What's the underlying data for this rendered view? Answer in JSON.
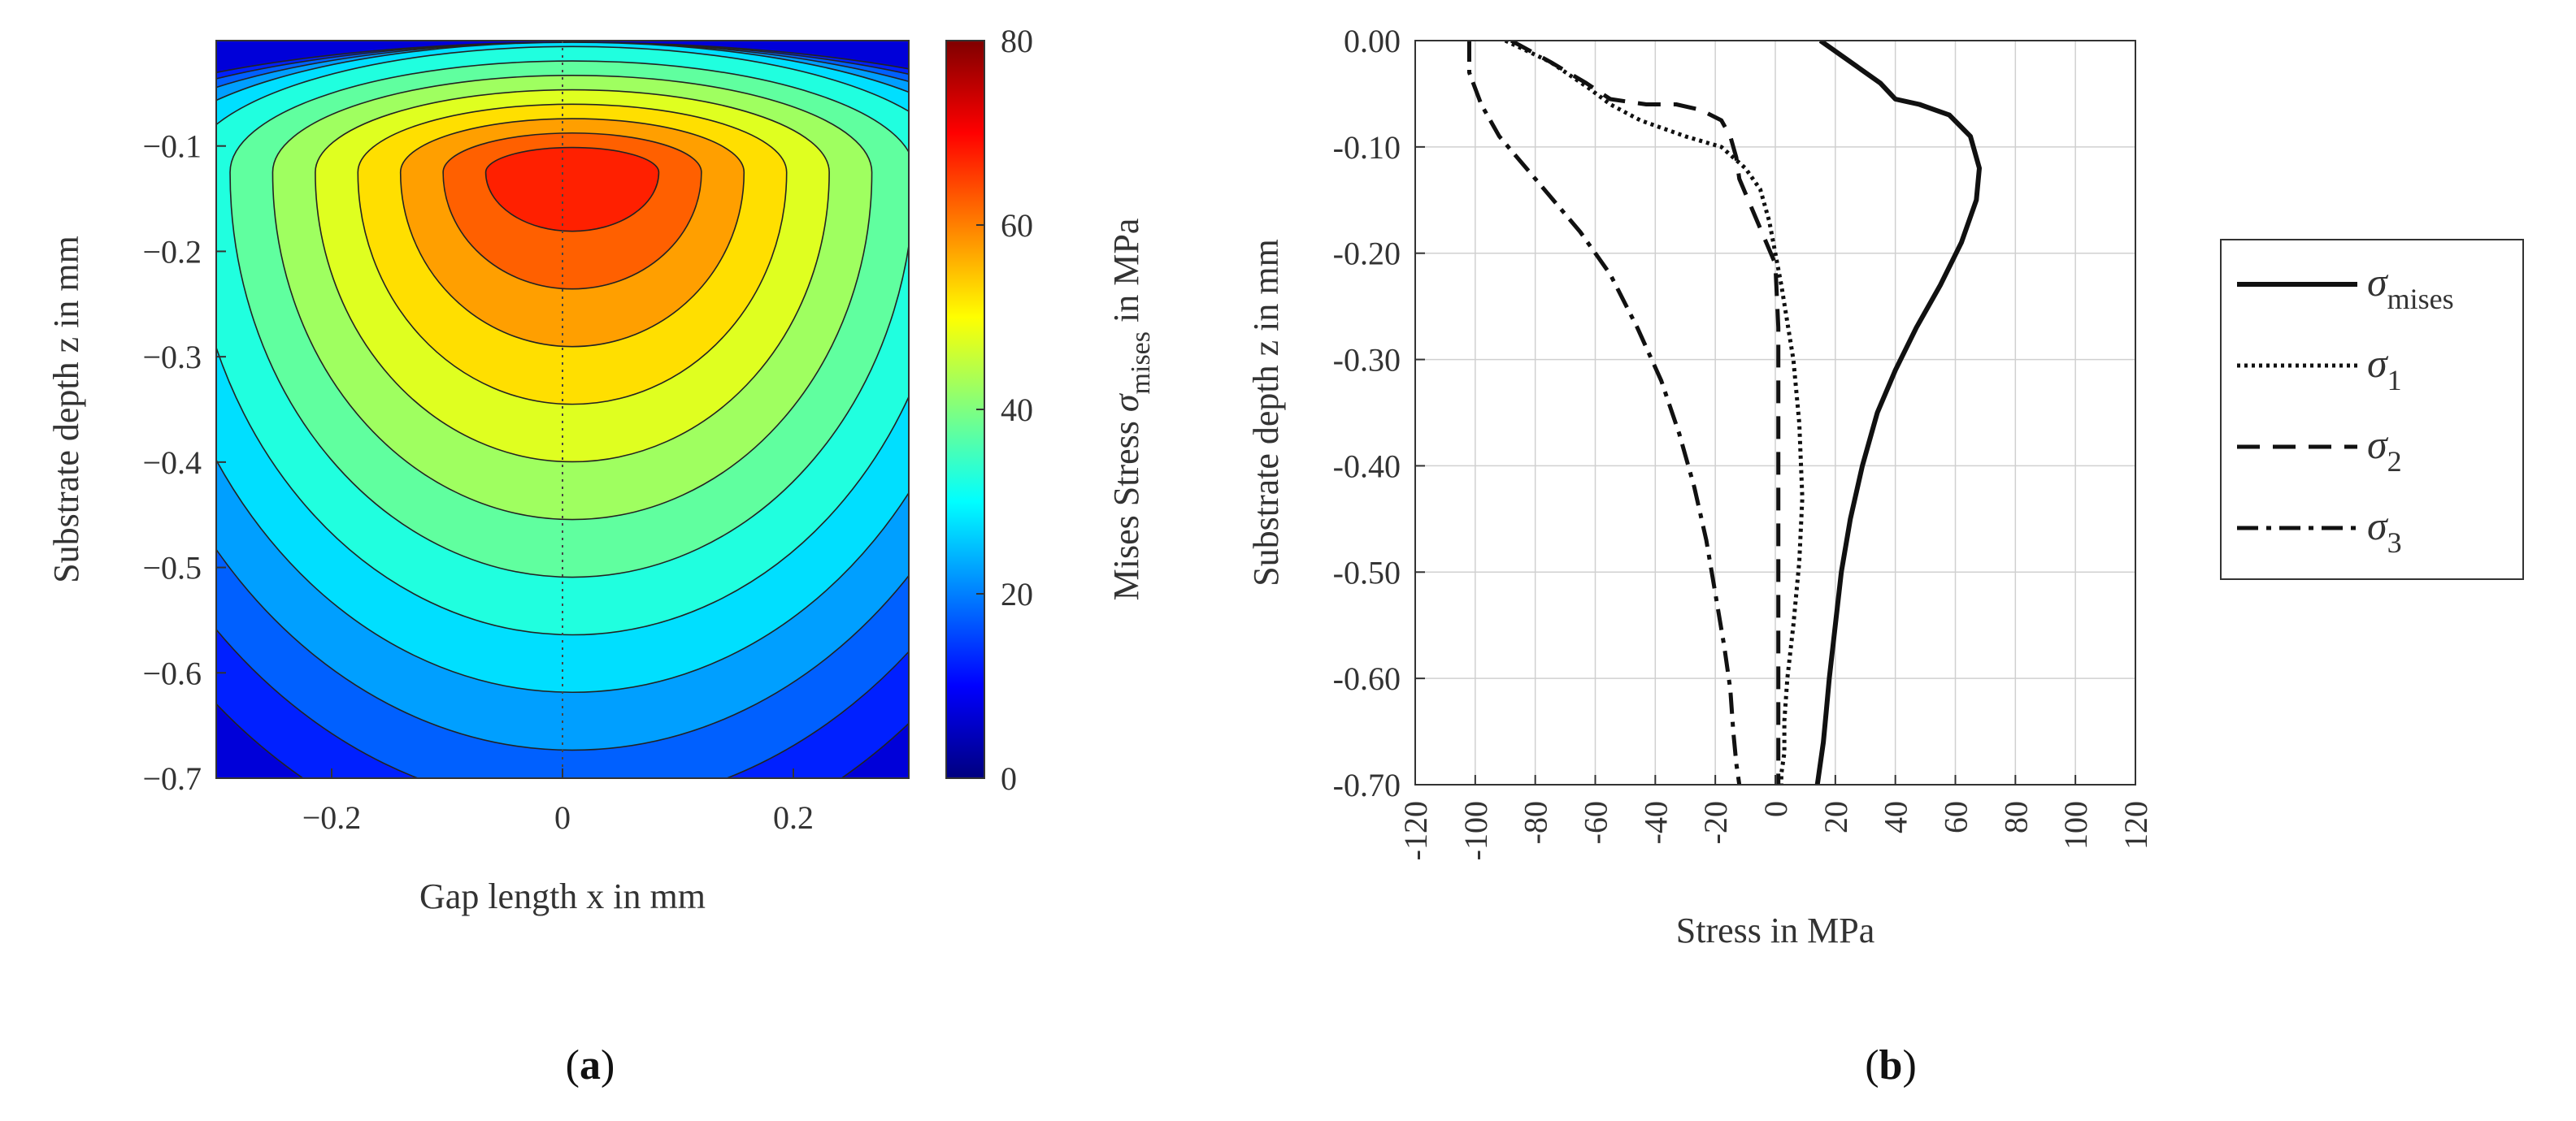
{
  "chart_data": [
    {
      "type": "heatmap",
      "panel_label": "a",
      "xlabel": "Gap length x in mm",
      "ylabel": "Substrate depth z in mm",
      "xlim": [
        -0.3,
        0.3
      ],
      "ylim": [
        -0.7,
        0.0
      ],
      "xticks": [
        -0.2,
        0,
        0.2
      ],
      "xtick_labels": [
        "−0.2",
        "0",
        "0.2"
      ],
      "yticks": [
        -0.1,
        -0.2,
        -0.3,
        -0.4,
        -0.5,
        -0.6,
        -0.7
      ],
      "ytick_labels": [
        "−0.1",
        "−0.2",
        "−0.3",
        "−0.4",
        "−0.5",
        "−0.6",
        "−0.7"
      ],
      "colorbar": {
        "label_prefix": "Mises Stress ",
        "label_symbol": "σ",
        "label_subscript": "mises",
        "label_suffix": " in MPa",
        "range": [
          0,
          80
        ],
        "ticks": [
          0,
          20,
          40,
          60,
          80
        ],
        "tick_labels": [
          "0",
          "20",
          "40",
          "60",
          "80"
        ],
        "colormap": "jet"
      },
      "peak": {
        "x": 0.0,
        "z": -0.125,
        "value": 68
      },
      "contour_levels": [
        10,
        15,
        20,
        25,
        30,
        35,
        40,
        45,
        50,
        55,
        60,
        65
      ],
      "center_line_x": 0
    },
    {
      "type": "line",
      "panel_label": "b",
      "xlabel": "Stress in MPa",
      "ylabel": "Substrate depth z in mm",
      "xlim": [
        -120,
        120
      ],
      "ylim": [
        -0.7,
        0.0
      ],
      "xticks": [
        -120,
        -100,
        -80,
        -60,
        -40,
        -20,
        0,
        20,
        40,
        60,
        80,
        100,
        120
      ],
      "xtick_labels": [
        "-120",
        "-100",
        "-80",
        "-60",
        "-40",
        "-20",
        "0",
        "20",
        "40",
        "60",
        "80",
        "100",
        "120"
      ],
      "yticks": [
        0.0,
        -0.1,
        -0.2,
        -0.3,
        -0.4,
        -0.5,
        -0.6,
        -0.7
      ],
      "ytick_labels": [
        "0.00",
        "-0.10",
        "-0.20",
        "-0.30",
        "-0.40",
        "-0.50",
        "-0.60",
        "-0.70"
      ],
      "grid": true,
      "legend_position": "right",
      "series": [
        {
          "name": "σmises",
          "symbol": "σ",
          "subscript": "mises",
          "style": "solid",
          "x": [
            15,
            35,
            40,
            48,
            58,
            65,
            68,
            67,
            62,
            55,
            47,
            40,
            34,
            29,
            25,
            22,
            20,
            18,
            17,
            16,
            15,
            14
          ],
          "z": [
            0.0,
            -0.04,
            -0.055,
            -0.06,
            -0.07,
            -0.09,
            -0.12,
            -0.15,
            -0.19,
            -0.23,
            -0.27,
            -0.31,
            -0.35,
            -0.4,
            -0.45,
            -0.5,
            -0.55,
            -0.6,
            -0.63,
            -0.66,
            -0.68,
            -0.7
          ]
        },
        {
          "name": "σ1",
          "symbol": "σ",
          "subscript": "1",
          "style": "dotted",
          "x": [
            -90,
            -75,
            -62,
            -55,
            -45,
            -30,
            -18,
            -10,
            -5,
            -2,
            2,
            6,
            8,
            9,
            8,
            6,
            4,
            3,
            3,
            2,
            2
          ],
          "z": [
            0.0,
            -0.02,
            -0.045,
            -0.06,
            -0.075,
            -0.09,
            -0.1,
            -0.12,
            -0.14,
            -0.17,
            -0.23,
            -0.3,
            -0.36,
            -0.43,
            -0.49,
            -0.55,
            -0.6,
            -0.64,
            -0.67,
            -0.69,
            -0.7
          ]
        },
        {
          "name": "σ2",
          "symbol": "σ",
          "subscript": "2",
          "style": "dashed",
          "x": [
            -88,
            -75,
            -63,
            -55,
            -43,
            -33,
            -25,
            -18,
            -15,
            -13,
            -12,
            -6,
            0,
            1,
            1,
            1,
            1,
            1,
            1,
            1
          ],
          "z": [
            0.0,
            -0.02,
            -0.04,
            -0.055,
            -0.06,
            -0.06,
            -0.065,
            -0.075,
            -0.09,
            -0.11,
            -0.13,
            -0.17,
            -0.21,
            -0.27,
            -0.34,
            -0.42,
            -0.5,
            -0.58,
            -0.65,
            -0.7
          ]
        },
        {
          "name": "σ3",
          "symbol": "σ",
          "subscript": "3",
          "style": "dashdot",
          "x": [
            -102,
            -102,
            -98,
            -92,
            -80,
            -65,
            -55,
            -46,
            -38,
            -32,
            -27,
            -23,
            -20,
            -17,
            -15,
            -14,
            -13,
            -12
          ],
          "z": [
            0.0,
            -0.03,
            -0.06,
            -0.09,
            -0.13,
            -0.18,
            -0.22,
            -0.27,
            -0.32,
            -0.37,
            -0.42,
            -0.47,
            -0.52,
            -0.57,
            -0.61,
            -0.65,
            -0.68,
            -0.7
          ]
        }
      ]
    }
  ]
}
